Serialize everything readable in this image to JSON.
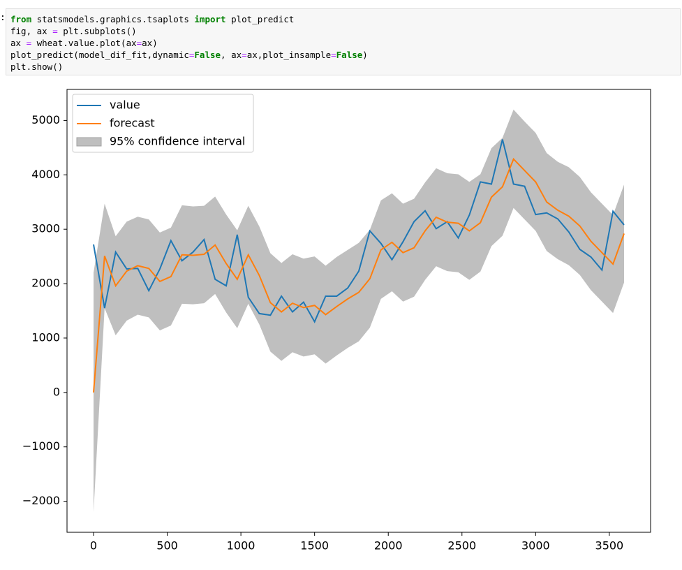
{
  "code": {
    "prompt": ":",
    "lines": [
      [
        {
          "text": "from",
          "color": "#008000"
        },
        {
          "text": " statsmodels.graphics.tsaplots "
        },
        {
          "text": "import",
          "color": "#008000"
        },
        {
          "text": " plot_predict"
        }
      ],
      [
        {
          "text": "fig, ax "
        },
        {
          "text": "=",
          "color": "#aa22ff"
        },
        {
          "text": " plt.subplots()"
        }
      ],
      [
        {
          "text": "ax "
        },
        {
          "text": "=",
          "color": "#aa22ff"
        },
        {
          "text": " wheat.value.plot(ax"
        },
        {
          "text": "=",
          "color": "#aa22ff"
        },
        {
          "text": "ax)"
        }
      ],
      [
        {
          "text": "plot_predict(model_dif_fit,dynamic"
        },
        {
          "text": "=",
          "color": "#aa22ff"
        },
        {
          "text": "False",
          "color": "#008000"
        },
        {
          "text": ", ax"
        },
        {
          "text": "=",
          "color": "#aa22ff"
        },
        {
          "text": "ax,plot_insample"
        },
        {
          "text": "=",
          "color": "#aa22ff"
        },
        {
          "text": "False",
          "color": "#008000"
        },
        {
          "text": ")"
        }
      ],
      [
        {
          "text": "plt.show()"
        }
      ]
    ]
  },
  "chart_data": {
    "type": "line",
    "x": [
      0,
      75,
      150,
      225,
      300,
      375,
      450,
      525,
      600,
      675,
      750,
      825,
      900,
      975,
      1050,
      1125,
      1200,
      1275,
      1350,
      1425,
      1500,
      1575,
      1650,
      1725,
      1800,
      1875,
      1950,
      2025,
      2100,
      2175,
      2250,
      2325,
      2400,
      2475,
      2550,
      2625,
      2700,
      2775,
      2850,
      2925,
      3000,
      3075,
      3150,
      3225,
      3300,
      3375,
      3450,
      3525,
      3600
    ],
    "series": [
      {
        "name": "value",
        "color": "#1f77b4",
        "values": [
          2720,
          1550,
          2580,
          2270,
          2280,
          1870,
          2270,
          2790,
          2420,
          2580,
          2810,
          2080,
          1960,
          2900,
          1750,
          1450,
          1420,
          1770,
          1480,
          1660,
          1300,
          1770,
          1770,
          1920,
          2230,
          2970,
          2740,
          2440,
          2770,
          3140,
          3340,
          3010,
          3140,
          2840,
          3260,
          3870,
          3830,
          4650,
          3830,
          3790,
          3270,
          3300,
          3190,
          2950,
          2630,
          2490,
          2250,
          3330,
          3080
        ]
      },
      {
        "name": "forecast",
        "color": "#ff7f0e",
        "values": [
          0,
          2510,
          1960,
          2230,
          2330,
          2280,
          2040,
          2130,
          2530,
          2520,
          2540,
          2710,
          2370,
          2080,
          2530,
          2150,
          1650,
          1480,
          1640,
          1560,
          1600,
          1430,
          1580,
          1720,
          1840,
          2090,
          2620,
          2760,
          2570,
          2660,
          2970,
          3220,
          3130,
          3110,
          2970,
          3120,
          3590,
          3780,
          4290,
          4080,
          3870,
          3500,
          3350,
          3240,
          3060,
          2780,
          2570,
          2360,
          2920
        ]
      }
    ],
    "interval": {
      "name": "95% confidence interval",
      "color": "#bfbfbf",
      "lower": [
        -2200,
        1550,
        1050,
        1320,
        1430,
        1380,
        1140,
        1230,
        1630,
        1620,
        1640,
        1810,
        1470,
        1180,
        1630,
        1250,
        750,
        580,
        740,
        660,
        700,
        530,
        680,
        820,
        940,
        1190,
        1720,
        1860,
        1670,
        1760,
        2070,
        2320,
        2230,
        2210,
        2070,
        2220,
        2690,
        2880,
        3390,
        3180,
        2970,
        2600,
        2450,
        2340,
        2160,
        1880,
        1670,
        1460,
        2020
      ],
      "upper": [
        2200,
        3470,
        2870,
        3140,
        3230,
        3180,
        2940,
        3030,
        3440,
        3420,
        3430,
        3600,
        3270,
        2980,
        3430,
        3050,
        2560,
        2380,
        2540,
        2460,
        2500,
        2330,
        2490,
        2620,
        2750,
        2990,
        3530,
        3660,
        3470,
        3560,
        3860,
        4120,
        4030,
        4010,
        3870,
        4010,
        4490,
        4680,
        5200,
        4980,
        4770,
        4400,
        4240,
        4140,
        3960,
        3680,
        3470,
        3260,
        3820
      ]
    },
    "xlim": [
      -180,
      3780
    ],
    "ylim": [
      -2570,
      5570
    ],
    "xticks": [
      0,
      500,
      1000,
      1500,
      2000,
      2500,
      3000,
      3500
    ],
    "yticks": [
      {
        "value": -2000,
        "label": "−2000"
      },
      {
        "value": -1000,
        "label": "−1000"
      },
      0,
      1000,
      2000,
      3000,
      4000,
      5000
    ],
    "legend": "upper left"
  }
}
